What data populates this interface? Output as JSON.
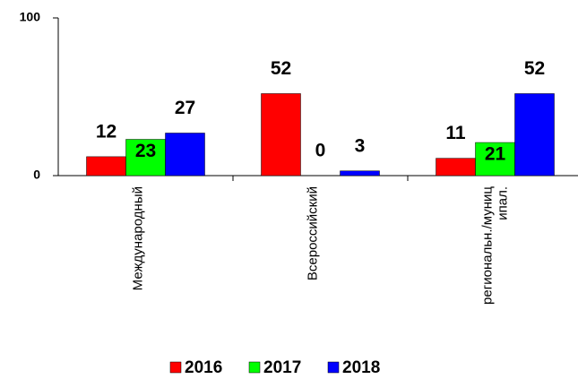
{
  "chart_data": {
    "type": "bar",
    "categories": [
      "Международный",
      "Всероссийский",
      "региональн./муниц\nипал."
    ],
    "series": [
      {
        "name": "2016",
        "color": "#ff0000",
        "values": [
          12,
          52,
          11
        ]
      },
      {
        "name": "2017",
        "color": "#00ff00",
        "values": [
          23,
          0,
          21
        ]
      },
      {
        "name": "2018",
        "color": "#0000ff",
        "values": [
          27,
          3,
          52
        ]
      }
    ],
    "ylim": [
      0,
      100
    ],
    "yticks": [
      0,
      100
    ],
    "legend": "bottom"
  }
}
